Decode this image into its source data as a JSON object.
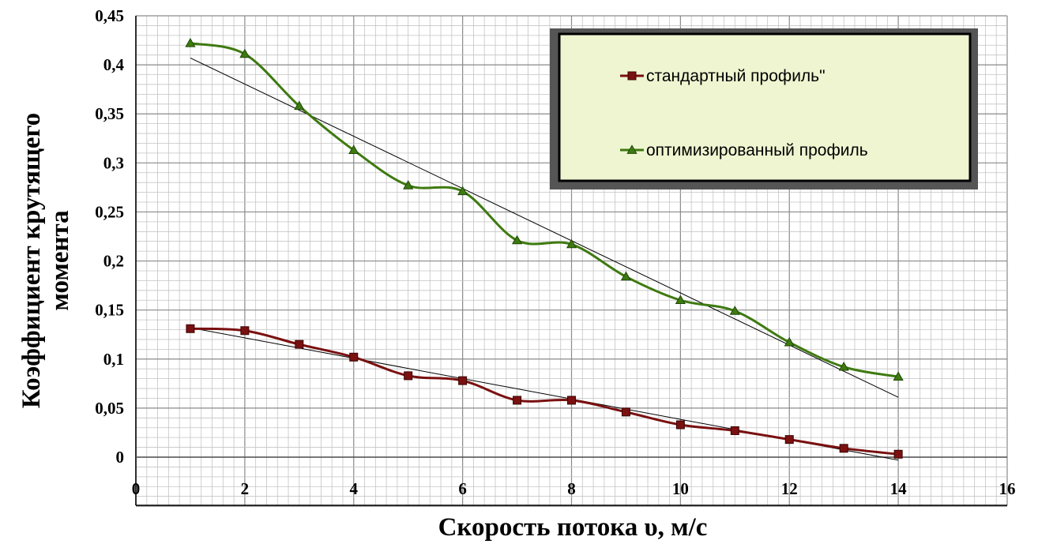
{
  "chart_data": {
    "type": "line",
    "xlabel": "Скорость потока υ, м/с",
    "ylabel": "Коэффициент крутящего момента",
    "xlim": [
      0,
      16
    ],
    "ylim": [
      0,
      0.45
    ],
    "x_ticks": [
      "0",
      "2",
      "4",
      "6",
      "8",
      "10",
      "12",
      "14",
      "16"
    ],
    "y_ticks": [
      "0",
      "0,05",
      "0,1",
      "0,15",
      "0,2",
      "0,25",
      "0,3",
      "0,35",
      "0,4",
      "0,45"
    ],
    "grid": true,
    "legend_position": "top-right",
    "series": [
      {
        "name": "стандартный профиль\"",
        "color": "#7a1010",
        "marker": "square",
        "x": [
          1,
          2,
          3,
          4,
          5,
          6,
          7,
          8,
          9,
          10,
          11,
          12,
          13,
          14
        ],
        "y": [
          0.131,
          0.129,
          0.115,
          0.102,
          0.083,
          0.078,
          0.058,
          0.058,
          0.046,
          0.033,
          0.027,
          0.018,
          0.009,
          0.003
        ],
        "trendline": {
          "x": [
            1,
            14
          ],
          "y": [
            0.132,
            -0.003
          ]
        }
      },
      {
        "name": "оптимизированный профиль",
        "color": "#3e7a10",
        "marker": "triangle",
        "x": [
          1,
          2,
          3,
          4,
          5,
          6,
          7,
          8,
          9,
          10,
          11,
          12,
          13,
          14
        ],
        "y": [
          0.422,
          0.411,
          0.358,
          0.313,
          0.277,
          0.271,
          0.221,
          0.217,
          0.184,
          0.16,
          0.149,
          0.117,
          0.092,
          0.082
        ],
        "trendline": {
          "x": [
            1,
            14
          ],
          "y": [
            0.407,
            0.061
          ]
        }
      }
    ]
  }
}
